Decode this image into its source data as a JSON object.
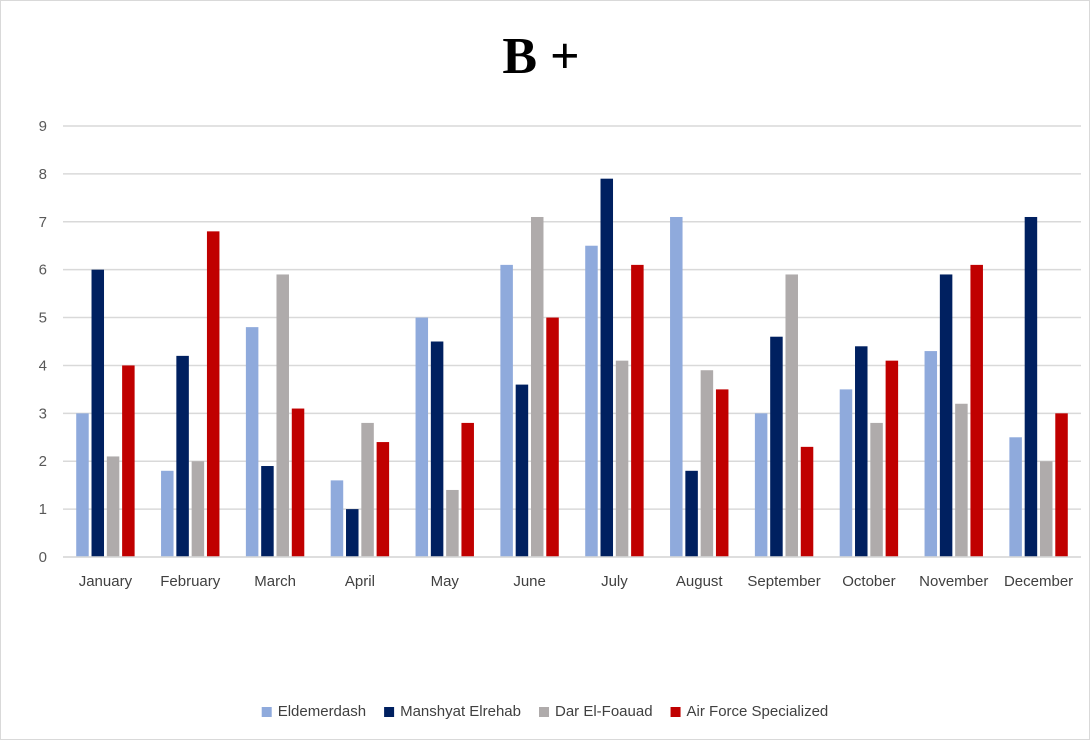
{
  "chart_data": {
    "type": "bar",
    "title": "B +",
    "xlabel": "",
    "ylabel": "",
    "ylim": [
      0,
      9
    ],
    "yticks": [
      0,
      1,
      2,
      3,
      4,
      5,
      6,
      7,
      8,
      9
    ],
    "grid": true,
    "legend_position": "bottom",
    "categories": [
      "January",
      "February",
      "March",
      "April",
      "May",
      "June",
      "July",
      "August",
      "September",
      "October",
      "November",
      "December"
    ],
    "series": [
      {
        "name": "Eldemerdash",
        "color": "#8faadc",
        "values": [
          3.0,
          1.8,
          4.8,
          1.6,
          5.0,
          6.1,
          6.5,
          7.1,
          3.0,
          3.5,
          4.3,
          2.5
        ]
      },
      {
        "name": "Manshyat Elrehab",
        "color": "#002060",
        "values": [
          6.0,
          4.2,
          1.9,
          1.0,
          4.5,
          3.6,
          7.9,
          1.8,
          4.6,
          4.4,
          5.9,
          7.1
        ]
      },
      {
        "name": "Dar El-Foauad",
        "color": "#afabab",
        "values": [
          2.1,
          2.0,
          5.9,
          2.8,
          1.4,
          7.1,
          4.1,
          3.9,
          5.9,
          2.8,
          3.2,
          2.0
        ]
      },
      {
        "name": "Air Force Specialized",
        "color": "#c00000",
        "values": [
          4.0,
          6.8,
          3.1,
          2.4,
          2.8,
          5.0,
          6.1,
          3.5,
          2.3,
          4.1,
          6.1,
          3.0
        ]
      }
    ]
  }
}
